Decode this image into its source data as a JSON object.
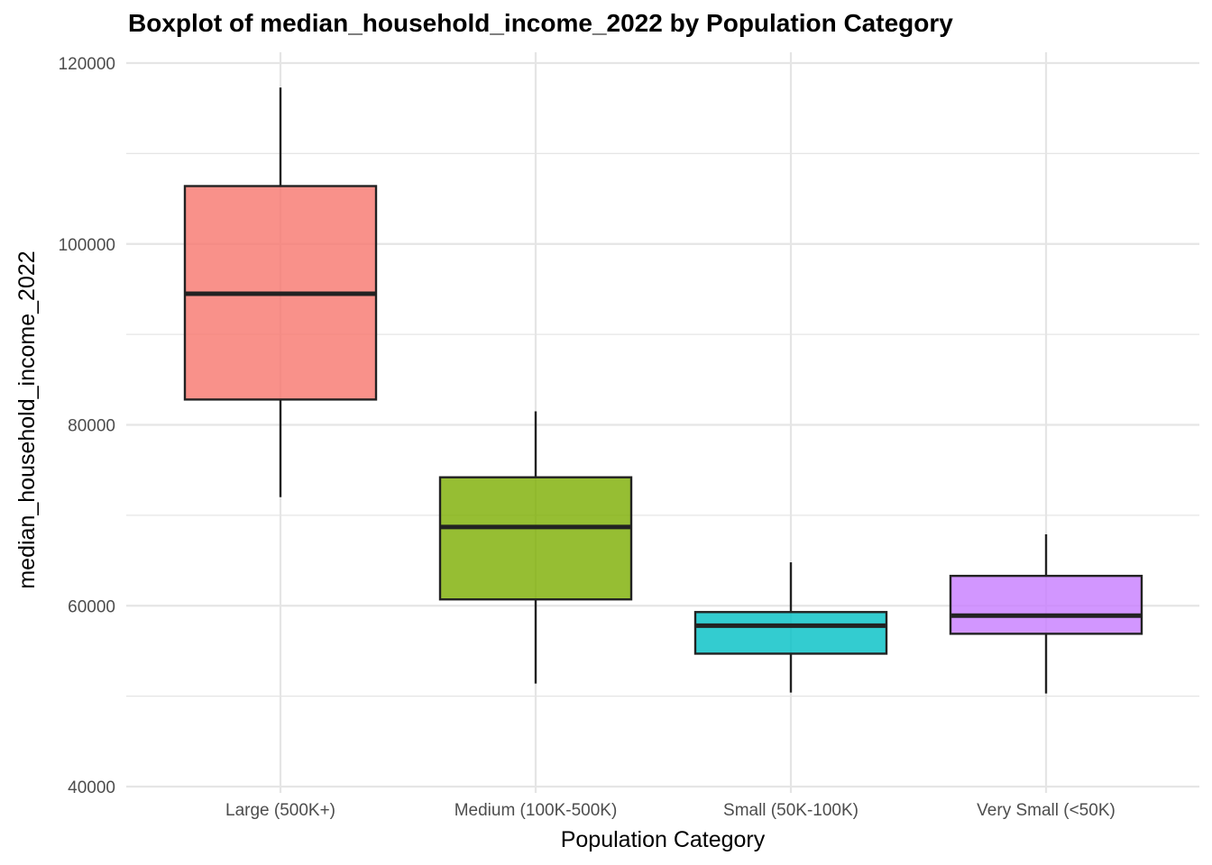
{
  "chart_data": {
    "type": "boxplot",
    "title": "Boxplot of median_household_income_2022 by Population Category",
    "xlabel": "Population Category",
    "ylabel": "median_household_income_2022",
    "ylim": [
      40000,
      120000
    ],
    "yticks": [
      "40000",
      "60000",
      "80000",
      "100000",
      "120000"
    ],
    "ytick_values": [
      40000,
      60000,
      80000,
      100000,
      120000
    ],
    "y_minor_gridlines": [
      50000,
      70000,
      90000,
      110000
    ],
    "grid": true,
    "legend": "none",
    "categories": [
      "Large (500K+)",
      "Medium (100K-500K)",
      "Small (50K-100K)",
      "Very Small (<50K)"
    ],
    "boxes": [
      {
        "category": "Large (500K+)",
        "whisker_low": 72000,
        "q1": 82800,
        "median": 94500,
        "q3": 106400,
        "whisker_high": 117300,
        "color": "#f8766d"
      },
      {
        "category": "Medium (100K-500K)",
        "whisker_low": 51400,
        "q1": 60700,
        "median": 68700,
        "q3": 74200,
        "whisker_high": 81500,
        "color": "#7cae00"
      },
      {
        "category": "Small (50K-100K)",
        "whisker_low": 50400,
        "q1": 54700,
        "median": 57800,
        "q3": 59300,
        "whisker_high": 64800,
        "color": "#00bfc4"
      },
      {
        "category": "Very Small (<50K)",
        "whisker_low": 50300,
        "q1": 56900,
        "median": 58900,
        "q3": 63300,
        "whisker_high": 67900,
        "color": "#c77cff"
      }
    ],
    "box_fill_opacity": 0.8,
    "box_outline_color": "#222222",
    "grid_color": "#e5e5e5"
  }
}
